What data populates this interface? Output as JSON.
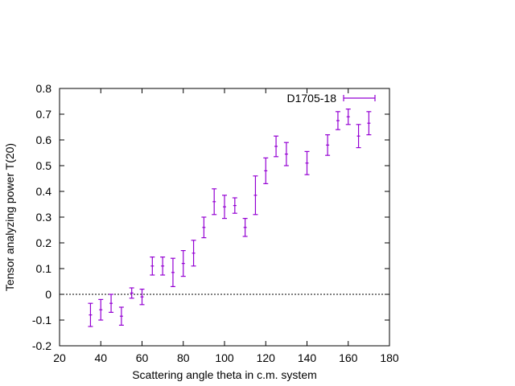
{
  "chart_data": {
    "type": "scatter",
    "xlabel": "Scattering angle theta in c.m. system",
    "ylabel": "Tensor analyzing power T(20)",
    "xlim": [
      20,
      180
    ],
    "ylim": [
      -0.2,
      0.8
    ],
    "xticks": [
      20,
      40,
      60,
      80,
      100,
      120,
      140,
      160,
      180
    ],
    "yticks": [
      -0.2,
      -0.1,
      0,
      0.1,
      0.2,
      0.3,
      0.4,
      0.5,
      0.6,
      0.7,
      0.8
    ],
    "xtick_labels": [
      "20",
      "40",
      "60",
      "80",
      "100",
      "120",
      "140",
      "160",
      "180"
    ],
    "ytick_labels": [
      "-0.2",
      "-0.1",
      "0",
      "0.1",
      "0.2",
      "0.3",
      "0.4",
      "0.5",
      "0.6",
      "0.7",
      "0.8"
    ],
    "grid": false,
    "zero_line": true,
    "legend_position": "top-right",
    "series": [
      {
        "name": "D1705-18",
        "color": "#9400d3",
        "error_bars": "y",
        "points": [
          {
            "x": 35,
            "y": -0.08,
            "err": 0.045
          },
          {
            "x": 40,
            "y": -0.06,
            "err": 0.04
          },
          {
            "x": 45,
            "y": -0.035,
            "err": 0.035
          },
          {
            "x": 50,
            "y": -0.085,
            "err": 0.035
          },
          {
            "x": 55,
            "y": 0.005,
            "err": 0.02
          },
          {
            "x": 60,
            "y": -0.01,
            "err": 0.03
          },
          {
            "x": 65,
            "y": 0.11,
            "err": 0.035
          },
          {
            "x": 70,
            "y": 0.11,
            "err": 0.035
          },
          {
            "x": 75,
            "y": 0.085,
            "err": 0.055
          },
          {
            "x": 80,
            "y": 0.12,
            "err": 0.05
          },
          {
            "x": 85,
            "y": 0.16,
            "err": 0.05
          },
          {
            "x": 90,
            "y": 0.26,
            "err": 0.04
          },
          {
            "x": 95,
            "y": 0.36,
            "err": 0.05
          },
          {
            "x": 100,
            "y": 0.34,
            "err": 0.045
          },
          {
            "x": 105,
            "y": 0.345,
            "err": 0.03
          },
          {
            "x": 110,
            "y": 0.26,
            "err": 0.035
          },
          {
            "x": 115,
            "y": 0.385,
            "err": 0.075
          },
          {
            "x": 120,
            "y": 0.48,
            "err": 0.05
          },
          {
            "x": 125,
            "y": 0.575,
            "err": 0.04
          },
          {
            "x": 130,
            "y": 0.545,
            "err": 0.045
          },
          {
            "x": 140,
            "y": 0.51,
            "err": 0.045
          },
          {
            "x": 150,
            "y": 0.58,
            "err": 0.04
          },
          {
            "x": 155,
            "y": 0.675,
            "err": 0.035
          },
          {
            "x": 160,
            "y": 0.69,
            "err": 0.03
          },
          {
            "x": 165,
            "y": 0.615,
            "err": 0.045
          },
          {
            "x": 170,
            "y": 0.665,
            "err": 0.045
          }
        ]
      }
    ]
  }
}
